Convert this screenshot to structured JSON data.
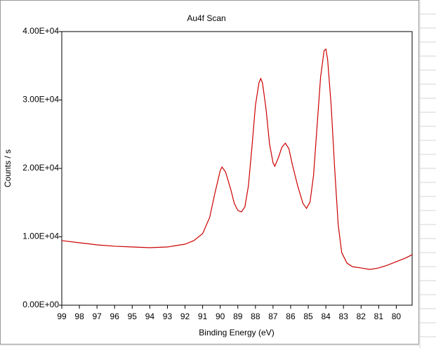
{
  "chart_data": {
    "type": "line",
    "title": "Au4f Scan",
    "x_label": "Binding Energy (eV)",
    "y_label": "Counts / s",
    "x": [
      99.0,
      98.0,
      97.0,
      96.0,
      95.0,
      94.0,
      93.0,
      92.5,
      92.0,
      91.5,
      91.0,
      90.6,
      90.3,
      90.0,
      89.9,
      89.7,
      89.4,
      89.2,
      89.0,
      88.8,
      88.6,
      88.4,
      88.2,
      88.0,
      87.8,
      87.7,
      87.6,
      87.4,
      87.2,
      87.0,
      86.9,
      86.7,
      86.5,
      86.3,
      86.1,
      85.9,
      85.6,
      85.3,
      85.1,
      84.9,
      84.7,
      84.5,
      84.3,
      84.1,
      84.0,
      83.9,
      83.7,
      83.5,
      83.3,
      83.1,
      82.8,
      82.5,
      82.0,
      81.5,
      81.0,
      80.5,
      80.0,
      79.5,
      79.1
    ],
    "series": [
      {
        "name": "Au4f",
        "color": "#cc0000",
        "values": [
          9440,
          9130,
          8820,
          8620,
          8510,
          8410,
          8510,
          8720,
          8920,
          9440,
          10460,
          12820,
          16410,
          19690,
          20200,
          19490,
          16920,
          14870,
          13850,
          13640,
          14360,
          17440,
          23080,
          29230,
          32510,
          33130,
          32510,
          28720,
          23590,
          20820,
          20310,
          21540,
          23080,
          23690,
          22870,
          20510,
          17440,
          14870,
          14150,
          15080,
          18970,
          26150,
          33330,
          37230,
          37440,
          35900,
          29230,
          20000,
          11790,
          7690,
          6150,
          5640,
          5440,
          5230,
          5440,
          5850,
          6360,
          6870,
          7380
        ]
      }
    ],
    "xlim": [
      99,
      79.1
    ],
    "xticks": [
      99,
      98,
      97,
      96,
      95,
      94,
      93,
      92,
      91,
      90,
      89,
      88,
      87,
      86,
      85,
      84,
      83,
      82,
      81,
      80
    ],
    "ylim": [
      0,
      40000
    ],
    "yticks": [
      {
        "value": 0,
        "label": "0.00E+00"
      },
      {
        "value": 10000,
        "label": "1.00E+04"
      },
      {
        "value": 20000,
        "label": "2.00E+04"
      },
      {
        "value": 30000,
        "label": "3.00E+04"
      },
      {
        "value": 40000,
        "label": "4.00E+04"
      }
    ],
    "grid": false
  }
}
